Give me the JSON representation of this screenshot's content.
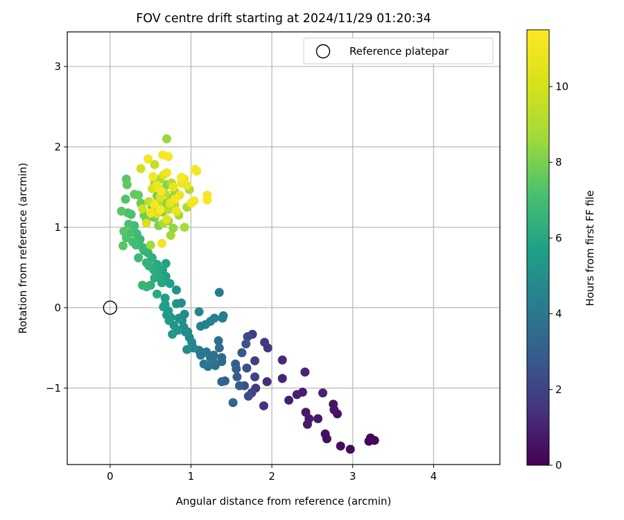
{
  "chart_data": {
    "type": "scatter",
    "title": "FOV centre drift starting at 2024/11/29 01:20:34",
    "xlabel": "Angular distance from reference (arcmin)",
    "ylabel": "Rotation from reference (arcmin)",
    "xlim": [
      -0.53,
      4.82
    ],
    "ylim": [
      -1.95,
      3.43
    ],
    "xticks": [
      0,
      1,
      2,
      3,
      4
    ],
    "yticks": [
      -1,
      0,
      1,
      2,
      3
    ],
    "grid": true,
    "legend": {
      "placement": "upper right",
      "entries": [
        {
          "label": "Reference platepar",
          "marker": "open-circle"
        }
      ]
    },
    "reference_point": {
      "x": 0,
      "y": 0
    },
    "colorbar": {
      "label": "Hours from first FF file",
      "range": [
        0,
        11.5
      ],
      "ticks": [
        0,
        2,
        4,
        6,
        8,
        10
      ],
      "colormap": "viridis"
    },
    "points": [
      {
        "x": 3.22,
        "y": -1.62,
        "h": 0.1
      },
      {
        "x": 3.27,
        "y": -1.65,
        "h": 0.15
      },
      {
        "x": 3.2,
        "y": -1.66,
        "h": 0.2
      },
      {
        "x": 2.97,
        "y": -1.76,
        "h": 0.3
      },
      {
        "x": 2.85,
        "y": -1.72,
        "h": 0.35
      },
      {
        "x": 2.68,
        "y": -1.63,
        "h": 0.4
      },
      {
        "x": 2.66,
        "y": -1.57,
        "h": 0.45
      },
      {
        "x": 2.81,
        "y": -1.32,
        "h": 0.5
      },
      {
        "x": 2.76,
        "y": -1.2,
        "h": 0.55
      },
      {
        "x": 2.77,
        "y": -1.27,
        "h": 0.6
      },
      {
        "x": 2.57,
        "y": -1.38,
        "h": 0.65
      },
      {
        "x": 2.46,
        "y": -1.38,
        "h": 0.7
      },
      {
        "x": 2.42,
        "y": -1.3,
        "h": 0.75
      },
      {
        "x": 2.44,
        "y": -1.45,
        "h": 0.8
      },
      {
        "x": 2.38,
        "y": -1.05,
        "h": 0.85
      },
      {
        "x": 2.31,
        "y": -1.08,
        "h": 0.9
      },
      {
        "x": 2.21,
        "y": -1.15,
        "h": 0.95
      },
      {
        "x": 2.63,
        "y": -1.06,
        "h": 1.0
      },
      {
        "x": 2.41,
        "y": -0.8,
        "h": 1.05
      },
      {
        "x": 2.13,
        "y": -0.88,
        "h": 1.1
      },
      {
        "x": 2.13,
        "y": -0.65,
        "h": 1.2
      },
      {
        "x": 1.94,
        "y": -0.92,
        "h": 1.3
      },
      {
        "x": 1.9,
        "y": -1.22,
        "h": 1.4
      },
      {
        "x": 1.95,
        "y": -0.5,
        "h": 1.5
      },
      {
        "x": 1.91,
        "y": -0.43,
        "h": 1.6
      },
      {
        "x": 1.8,
        "y": -1.0,
        "h": 1.7
      },
      {
        "x": 1.76,
        "y": -0.33,
        "h": 1.8
      },
      {
        "x": 1.79,
        "y": -0.66,
        "h": 1.9
      },
      {
        "x": 1.79,
        "y": -0.86,
        "h": 2.0
      },
      {
        "x": 1.75,
        "y": -1.06,
        "h": 2.1
      },
      {
        "x": 1.7,
        "y": -0.36,
        "h": 2.2
      },
      {
        "x": 1.71,
        "y": -1.1,
        "h": 2.3
      },
      {
        "x": 1.66,
        "y": -0.97,
        "h": 2.4
      },
      {
        "x": 1.69,
        "y": -0.75,
        "h": 2.5
      },
      {
        "x": 1.68,
        "y": -0.45,
        "h": 2.6
      },
      {
        "x": 1.63,
        "y": -0.56,
        "h": 2.7
      },
      {
        "x": 1.6,
        "y": -0.97,
        "h": 2.8
      },
      {
        "x": 1.57,
        "y": -0.86,
        "h": 2.9
      },
      {
        "x": 1.55,
        "y": -0.7,
        "h": 3.0
      },
      {
        "x": 1.56,
        "y": -0.76,
        "h": 3.1
      },
      {
        "x": 1.42,
        "y": -0.91,
        "h": 3.15
      },
      {
        "x": 1.38,
        "y": -0.92,
        "h": 3.2
      },
      {
        "x": 1.52,
        "y": -1.18,
        "h": 3.3
      },
      {
        "x": 1.38,
        "y": -0.62,
        "h": 3.4
      },
      {
        "x": 1.38,
        "y": -0.67,
        "h": 3.5
      },
      {
        "x": 1.35,
        "y": -0.5,
        "h": 3.55
      },
      {
        "x": 1.34,
        "y": -0.41,
        "h": 3.6
      },
      {
        "x": 1.3,
        "y": -0.72,
        "h": 3.7
      },
      {
        "x": 1.28,
        "y": -0.59,
        "h": 3.75
      },
      {
        "x": 1.27,
        "y": -0.66,
        "h": 3.8
      },
      {
        "x": 1.24,
        "y": -0.62,
        "h": 3.85
      },
      {
        "x": 1.21,
        "y": -0.73,
        "h": 3.9
      },
      {
        "x": 1.19,
        "y": -0.55,
        "h": 3.95
      },
      {
        "x": 1.16,
        "y": -0.7,
        "h": 4.0
      },
      {
        "x": 1.14,
        "y": -0.57,
        "h": 4.05
      },
      {
        "x": 1.12,
        "y": -0.59,
        "h": 4.1
      },
      {
        "x": 1.1,
        "y": -0.53,
        "h": 4.15
      },
      {
        "x": 1.35,
        "y": 0.19,
        "h": 4.2
      },
      {
        "x": 1.4,
        "y": -0.1,
        "h": 4.25
      },
      {
        "x": 1.39,
        "y": -0.13,
        "h": 4.3
      },
      {
        "x": 1.29,
        "y": -0.13,
        "h": 4.35
      },
      {
        "x": 1.24,
        "y": -0.17,
        "h": 4.4
      },
      {
        "x": 1.18,
        "y": -0.21,
        "h": 4.45
      },
      {
        "x": 1.12,
        "y": -0.23,
        "h": 4.5
      },
      {
        "x": 1.1,
        "y": -0.05,
        "h": 4.55
      },
      {
        "x": 1.03,
        "y": -0.5,
        "h": 4.6
      },
      {
        "x": 1.01,
        "y": -0.43,
        "h": 4.65
      },
      {
        "x": 0.98,
        "y": -0.37,
        "h": 4.7
      },
      {
        "x": 0.96,
        "y": -0.3,
        "h": 4.75
      },
      {
        "x": 0.95,
        "y": -0.52,
        "h": 4.8
      },
      {
        "x": 0.93,
        "y": -0.3,
        "h": 4.85
      },
      {
        "x": 0.92,
        "y": -0.08,
        "h": 4.9
      },
      {
        "x": 0.91,
        "y": -0.24,
        "h": 4.95
      },
      {
        "x": 0.89,
        "y": -0.16,
        "h": 5.0
      },
      {
        "x": 0.88,
        "y": 0.06,
        "h": 5.05
      },
      {
        "x": 0.85,
        "y": -0.13,
        "h": 5.1
      },
      {
        "x": 0.84,
        "y": -0.28,
        "h": 5.15
      },
      {
        "x": 0.82,
        "y": 0.05,
        "h": 5.2
      },
      {
        "x": 0.82,
        "y": 0.22,
        "h": 5.25
      },
      {
        "x": 0.79,
        "y": -0.22,
        "h": 5.3
      },
      {
        "x": 0.77,
        "y": -0.33,
        "h": 5.35
      },
      {
        "x": 0.75,
        "y": -0.12,
        "h": 5.4
      },
      {
        "x": 0.73,
        "y": -0.16,
        "h": 5.45
      },
      {
        "x": 0.72,
        "y": -0.04,
        "h": 5.5
      },
      {
        "x": 0.7,
        "y": -0.09,
        "h": 5.55
      },
      {
        "x": 0.68,
        "y": 0.04,
        "h": 5.6
      },
      {
        "x": 0.68,
        "y": 0.12,
        "h": 5.65
      },
      {
        "x": 0.66,
        "y": 0.01,
        "h": 5.7
      },
      {
        "x": 0.74,
        "y": 0.3,
        "h": 5.75
      },
      {
        "x": 0.69,
        "y": 0.39,
        "h": 5.8
      },
      {
        "x": 0.69,
        "y": 0.55,
        "h": 5.85
      },
      {
        "x": 0.65,
        "y": 0.47,
        "h": 5.9
      },
      {
        "x": 0.64,
        "y": 0.31,
        "h": 5.95
      },
      {
        "x": 0.62,
        "y": 0.38,
        "h": 6.0
      },
      {
        "x": 0.58,
        "y": 0.42,
        "h": 6.05
      },
      {
        "x": 0.58,
        "y": 0.54,
        "h": 6.1
      },
      {
        "x": 0.58,
        "y": 0.17,
        "h": 6.15
      },
      {
        "x": 0.55,
        "y": 0.37,
        "h": 6.2
      },
      {
        "x": 0.54,
        "y": 0.47,
        "h": 6.25
      },
      {
        "x": 0.52,
        "y": 0.62,
        "h": 6.3
      },
      {
        "x": 0.5,
        "y": 0.28,
        "h": 6.35
      },
      {
        "x": 0.48,
        "y": 0.52,
        "h": 6.4
      },
      {
        "x": 0.47,
        "y": 0.68,
        "h": 6.45
      },
      {
        "x": 0.45,
        "y": 0.56,
        "h": 6.5
      },
      {
        "x": 0.45,
        "y": 0.26,
        "h": 6.55
      },
      {
        "x": 0.42,
        "y": 0.71,
        "h": 6.6
      },
      {
        "x": 0.4,
        "y": 0.28,
        "h": 6.65
      },
      {
        "x": 0.4,
        "y": 0.75,
        "h": 6.7
      },
      {
        "x": 0.37,
        "y": 0.85,
        "h": 6.75
      },
      {
        "x": 0.35,
        "y": 0.62,
        "h": 6.8
      },
      {
        "x": 0.33,
        "y": 0.92,
        "h": 6.85
      },
      {
        "x": 0.32,
        "y": 0.78,
        "h": 6.9
      },
      {
        "x": 0.3,
        "y": 1.02,
        "h": 6.95
      },
      {
        "x": 0.28,
        "y": 0.82,
        "h": 7.0
      },
      {
        "x": 0.26,
        "y": 1.16,
        "h": 7.05
      },
      {
        "x": 0.25,
        "y": 0.93,
        "h": 7.1
      },
      {
        "x": 0.23,
        "y": 1.04,
        "h": 7.15
      },
      {
        "x": 0.22,
        "y": 1.18,
        "h": 7.2
      },
      {
        "x": 0.2,
        "y": 0.87,
        "h": 7.25
      },
      {
        "x": 0.19,
        "y": 1.35,
        "h": 7.3
      },
      {
        "x": 0.17,
        "y": 0.95,
        "h": 7.35
      },
      {
        "x": 0.16,
        "y": 0.77,
        "h": 7.4
      },
      {
        "x": 0.14,
        "y": 1.2,
        "h": 7.45
      },
      {
        "x": 0.2,
        "y": 1.6,
        "h": 7.5
      },
      {
        "x": 0.21,
        "y": 1.53,
        "h": 7.55
      },
      {
        "x": 0.3,
        "y": 1.41,
        "h": 7.6
      },
      {
        "x": 0.35,
        "y": 1.4,
        "h": 7.65
      },
      {
        "x": 0.38,
        "y": 1.3,
        "h": 7.7
      },
      {
        "x": 0.42,
        "y": 1.15,
        "h": 7.75
      },
      {
        "x": 0.45,
        "y": 1.08,
        "h": 7.8
      },
      {
        "x": 0.48,
        "y": 1.32,
        "h": 7.85
      },
      {
        "x": 0.52,
        "y": 1.25,
        "h": 7.9
      },
      {
        "x": 0.55,
        "y": 1.12,
        "h": 7.95
      },
      {
        "x": 0.58,
        "y": 1.39,
        "h": 8.0
      },
      {
        "x": 0.6,
        "y": 1.02,
        "h": 8.05
      },
      {
        "x": 0.63,
        "y": 1.46,
        "h": 8.1
      },
      {
        "x": 0.65,
        "y": 1.19,
        "h": 8.15
      },
      {
        "x": 0.68,
        "y": 1.3,
        "h": 8.2
      },
      {
        "x": 0.7,
        "y": 1.53,
        "h": 8.25
      },
      {
        "x": 0.72,
        "y": 1.08,
        "h": 8.3
      },
      {
        "x": 0.75,
        "y": 1.36,
        "h": 8.35
      },
      {
        "x": 0.78,
        "y": 0.99,
        "h": 8.4
      },
      {
        "x": 0.8,
        "y": 1.44,
        "h": 8.45
      },
      {
        "x": 0.7,
        "y": 2.1,
        "h": 8.5
      },
      {
        "x": 0.55,
        "y": 1.55,
        "h": 8.55
      },
      {
        "x": 0.5,
        "y": 0.78,
        "h": 8.6
      },
      {
        "x": 0.75,
        "y": 0.9,
        "h": 8.65
      },
      {
        "x": 0.85,
        "y": 1.15,
        "h": 8.7
      },
      {
        "x": 0.92,
        "y": 1.0,
        "h": 8.75
      },
      {
        "x": 0.95,
        "y": 1.25,
        "h": 8.8
      },
      {
        "x": 0.98,
        "y": 1.47,
        "h": 8.85
      },
      {
        "x": 0.62,
        "y": 1.6,
        "h": 8.9
      },
      {
        "x": 0.6,
        "y": 1.3,
        "h": 8.95
      },
      {
        "x": 0.66,
        "y": 1.05,
        "h": 9.0
      },
      {
        "x": 0.72,
        "y": 1.22,
        "h": 9.1
      },
      {
        "x": 0.76,
        "y": 1.55,
        "h": 9.2
      },
      {
        "x": 0.8,
        "y": 1.28,
        "h": 9.3
      },
      {
        "x": 0.68,
        "y": 1.42,
        "h": 9.4
      },
      {
        "x": 0.55,
        "y": 1.78,
        "h": 9.5
      },
      {
        "x": 0.48,
        "y": 1.32,
        "h": 9.6
      },
      {
        "x": 0.9,
        "y": 1.58,
        "h": 9.7
      },
      {
        "x": 0.4,
        "y": 1.23,
        "h": 9.8
      },
      {
        "x": 0.38,
        "y": 1.73,
        "h": 9.9
      },
      {
        "x": 0.45,
        "y": 1.05,
        "h": 10.0
      },
      {
        "x": 0.52,
        "y": 1.48,
        "h": 10.1
      },
      {
        "x": 0.58,
        "y": 1.17,
        "h": 10.2
      },
      {
        "x": 0.62,
        "y": 1.37,
        "h": 10.3
      },
      {
        "x": 0.66,
        "y": 1.65,
        "h": 10.4
      },
      {
        "x": 0.7,
        "y": 1.1,
        "h": 10.5
      },
      {
        "x": 0.74,
        "y": 1.3,
        "h": 10.6
      },
      {
        "x": 0.78,
        "y": 1.5,
        "h": 10.7
      },
      {
        "x": 0.82,
        "y": 1.2,
        "h": 10.8
      },
      {
        "x": 0.86,
        "y": 1.4,
        "h": 10.85
      },
      {
        "x": 0.88,
        "y": 1.55,
        "h": 10.9
      },
      {
        "x": 0.92,
        "y": 1.6,
        "h": 10.95
      },
      {
        "x": 0.95,
        "y": 1.52,
        "h": 11.0
      },
      {
        "x": 1.0,
        "y": 1.3,
        "h": 11.05
      },
      {
        "x": 1.04,
        "y": 1.33,
        "h": 11.1
      },
      {
        "x": 1.05,
        "y": 1.72,
        "h": 11.15
      },
      {
        "x": 1.07,
        "y": 1.7,
        "h": 11.2
      },
      {
        "x": 1.2,
        "y": 1.4,
        "h": 11.25
      },
      {
        "x": 1.2,
        "y": 1.34,
        "h": 11.3
      },
      {
        "x": 0.72,
        "y": 1.88,
        "h": 11.35
      },
      {
        "x": 0.65,
        "y": 1.9,
        "h": 11.4
      },
      {
        "x": 0.47,
        "y": 1.85,
        "h": 11.3
      },
      {
        "x": 0.53,
        "y": 1.63,
        "h": 11.2
      },
      {
        "x": 0.64,
        "y": 0.8,
        "h": 11.1
      },
      {
        "x": 0.7,
        "y": 1.68,
        "h": 11.0
      },
      {
        "x": 0.58,
        "y": 1.52,
        "h": 10.9
      },
      {
        "x": 0.62,
        "y": 1.22,
        "h": 11.35
      },
      {
        "x": 0.55,
        "y": 1.28,
        "h": 11.25
      },
      {
        "x": 0.8,
        "y": 1.35,
        "h": 11.15
      },
      {
        "x": 0.88,
        "y": 1.62,
        "h": 11.4
      },
      {
        "x": 0.63,
        "y": 1.45,
        "h": 11.3
      },
      {
        "x": 0.5,
        "y": 1.18,
        "h": 11.05
      }
    ]
  }
}
